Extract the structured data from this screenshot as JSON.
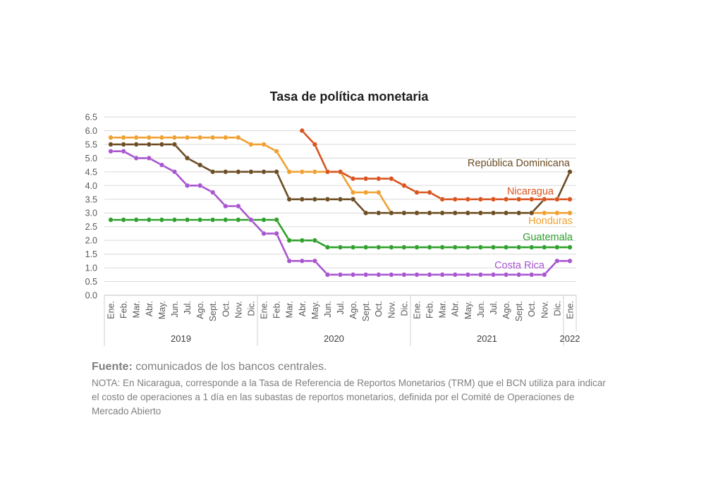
{
  "chart_data": {
    "type": "line",
    "title": "Tasa de política monetaria",
    "xlabel": "",
    "ylabel": "",
    "ylim": [
      0,
      6.5
    ],
    "yticks": [
      "0.0",
      "0.5",
      "1.0",
      "1.5",
      "2.0",
      "2.5",
      "3.0",
      "3.5",
      "4.0",
      "4.5",
      "5.0",
      "5.5",
      "6.0",
      "6.5"
    ],
    "grid": true,
    "legend": "inline labels at line ends",
    "categories": [
      "Ene.",
      "Feb.",
      "Mar.",
      "Abr.",
      "May.",
      "Jun.",
      "Jul.",
      "Ago.",
      "Sept.",
      "Oct.",
      "Nov.",
      "Dic.",
      "Ene.",
      "Feb.",
      "Mar.",
      "Abr.",
      "May.",
      "Jun.",
      "Jul.",
      "Ago.",
      "Sept.",
      "Oct.",
      "Nov.",
      "Dic.",
      "Ene.",
      "Feb.",
      "Mar.",
      "Abr.",
      "May.",
      "Jun.",
      "Jul.",
      "Ago.",
      "Sept.",
      "Oct.",
      "Nov.",
      "Dic.",
      "Ene."
    ],
    "years": [
      {
        "label": "2019",
        "start": 0,
        "end": 11
      },
      {
        "label": "2020",
        "start": 12,
        "end": 23
      },
      {
        "label": "2021",
        "start": 24,
        "end": 35
      },
      {
        "label": "2022",
        "start": 36,
        "end": 36
      }
    ],
    "series": [
      {
        "name": "República Dominicana",
        "color": "#6b4c23",
        "values": [
          5.5,
          5.5,
          5.5,
          5.5,
          5.5,
          5.5,
          5.0,
          4.75,
          4.5,
          4.5,
          4.5,
          4.5,
          4.5,
          4.5,
          3.5,
          3.5,
          3.5,
          3.5,
          3.5,
          3.5,
          3.0,
          3.0,
          3.0,
          3.0,
          3.0,
          3.0,
          3.0,
          3.0,
          3.0,
          3.0,
          3.0,
          3.0,
          3.0,
          3.0,
          3.5,
          3.5,
          4.5
        ]
      },
      {
        "name": "Nicaragua",
        "color": "#d9531e",
        "values": [
          null,
          null,
          null,
          null,
          null,
          null,
          null,
          null,
          null,
          null,
          null,
          null,
          null,
          null,
          null,
          6.0,
          5.5,
          4.5,
          4.5,
          4.25,
          4.25,
          4.25,
          4.25,
          4.0,
          3.75,
          3.75,
          3.5,
          3.5,
          3.5,
          3.5,
          3.5,
          3.5,
          3.5,
          3.5,
          3.5,
          3.5,
          3.5
        ]
      },
      {
        "name": "Honduras",
        "color": "#f0a030",
        "values": [
          5.75,
          5.75,
          5.75,
          5.75,
          5.75,
          5.75,
          5.75,
          5.75,
          5.75,
          5.75,
          5.75,
          5.5,
          5.5,
          5.25,
          4.5,
          4.5,
          4.5,
          4.5,
          4.5,
          3.75,
          3.75,
          3.75,
          3.0,
          3.0,
          3.0,
          3.0,
          3.0,
          3.0,
          3.0,
          3.0,
          3.0,
          3.0,
          3.0,
          3.0,
          3.0,
          3.0,
          3.0
        ]
      },
      {
        "name": "Guatemala",
        "color": "#2ea02c",
        "values": [
          2.75,
          2.75,
          2.75,
          2.75,
          2.75,
          2.75,
          2.75,
          2.75,
          2.75,
          2.75,
          2.75,
          2.75,
          2.75,
          2.75,
          2.0,
          2.0,
          2.0,
          1.75,
          1.75,
          1.75,
          1.75,
          1.75,
          1.75,
          1.75,
          1.75,
          1.75,
          1.75,
          1.75,
          1.75,
          1.75,
          1.75,
          1.75,
          1.75,
          1.75,
          1.75,
          1.75,
          1.75
        ]
      },
      {
        "name": "Costa Rica",
        "color": "#a855d0",
        "values": [
          5.25,
          5.25,
          5.0,
          5.0,
          4.75,
          4.5,
          4.0,
          4.0,
          3.75,
          3.25,
          3.25,
          2.75,
          2.25,
          2.25,
          1.25,
          1.25,
          1.25,
          0.75,
          0.75,
          0.75,
          0.75,
          0.75,
          0.75,
          0.75,
          0.75,
          0.75,
          0.75,
          0.75,
          0.75,
          0.75,
          0.75,
          0.75,
          0.75,
          0.75,
          0.75,
          1.25,
          1.25
        ]
      }
    ]
  },
  "source": {
    "label": "Fuente:",
    "text": " comunicados de los bancos centrales.",
    "note": "NOTA: En Nicaragua, corresponde a la Tasa de Referencia de Reportos Monetarios (TRM) que el BCN utiliza para indicar el costo de operaciones a 1 día en las subastas de reportos monetarios, definida por el Comité de Operaciones de Mercado Abierto"
  }
}
